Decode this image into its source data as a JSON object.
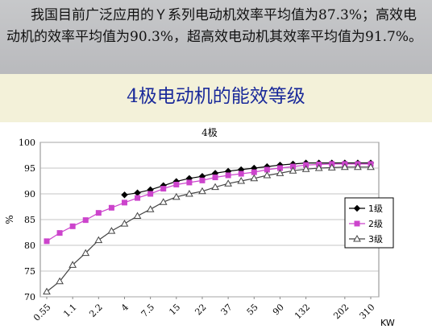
{
  "intro_text": "我国目前广泛应用的Ｙ系列电动机效率平均值为87.3%；高效电动机的效率平均值为90.3%，超高效电动机其效率平均值为91.7%。",
  "heading": "4极电动机的能效等级",
  "colors": {
    "background": "#f3f1d9",
    "intro_band": "#c7c8ca",
    "heading": "#1a2a9a",
    "series_1": "#000000",
    "series_2": "#cc44cc",
    "series_3": "#444444"
  },
  "chart_data": {
    "type": "line",
    "title": "4极",
    "xlabel": "KW",
    "ylabel": "%",
    "ylim": [
      70,
      100
    ],
    "yticks": [
      70,
      75,
      80,
      85,
      90,
      95,
      100
    ],
    "grid": true,
    "legend_position": "right",
    "x": [
      "0.55",
      "0.75",
      "1.1",
      "1.5",
      "2.2",
      "3",
      "4",
      "5.5",
      "7.5",
      "11",
      "15",
      "18.5",
      "22",
      "30",
      "37",
      "45",
      "55",
      "75",
      "90",
      "110",
      "132",
      "160",
      "200",
      "250",
      "315",
      "355"
    ],
    "xtick_labels": [
      "0.55",
      "1.1",
      "2.2",
      "4",
      "7.5",
      "15",
      "22",
      "37",
      "55",
      "90",
      "132",
      "202",
      "310"
    ],
    "series": [
      {
        "name": "1级",
        "marker": "diamond",
        "values": [
          null,
          null,
          null,
          null,
          null,
          null,
          89.8,
          90.2,
          90.8,
          91.6,
          92.4,
          93.0,
          93.4,
          94.0,
          94.4,
          94.7,
          95.0,
          95.3,
          95.6,
          95.8,
          96.0,
          96.0,
          96.0,
          96.0,
          96.0,
          96.0
        ]
      },
      {
        "name": "2级",
        "marker": "square",
        "values": [
          80.8,
          82.4,
          83.7,
          84.9,
          86.3,
          87.3,
          88.3,
          89.2,
          90.0,
          91.0,
          91.8,
          92.2,
          92.6,
          93.2,
          93.6,
          93.9,
          94.2,
          94.7,
          95.0,
          95.3,
          95.6,
          95.7,
          95.8,
          95.8,
          95.8,
          95.8
        ]
      },
      {
        "name": "3级",
        "marker": "triangle",
        "values": [
          71.0,
          73.0,
          76.2,
          78.5,
          81.0,
          82.8,
          84.2,
          85.7,
          87.0,
          88.4,
          89.4,
          90.0,
          90.5,
          91.3,
          92.0,
          92.5,
          93.0,
          93.6,
          94.0,
          94.5,
          94.8,
          95.0,
          95.1,
          95.2,
          95.2,
          95.2
        ]
      }
    ]
  }
}
